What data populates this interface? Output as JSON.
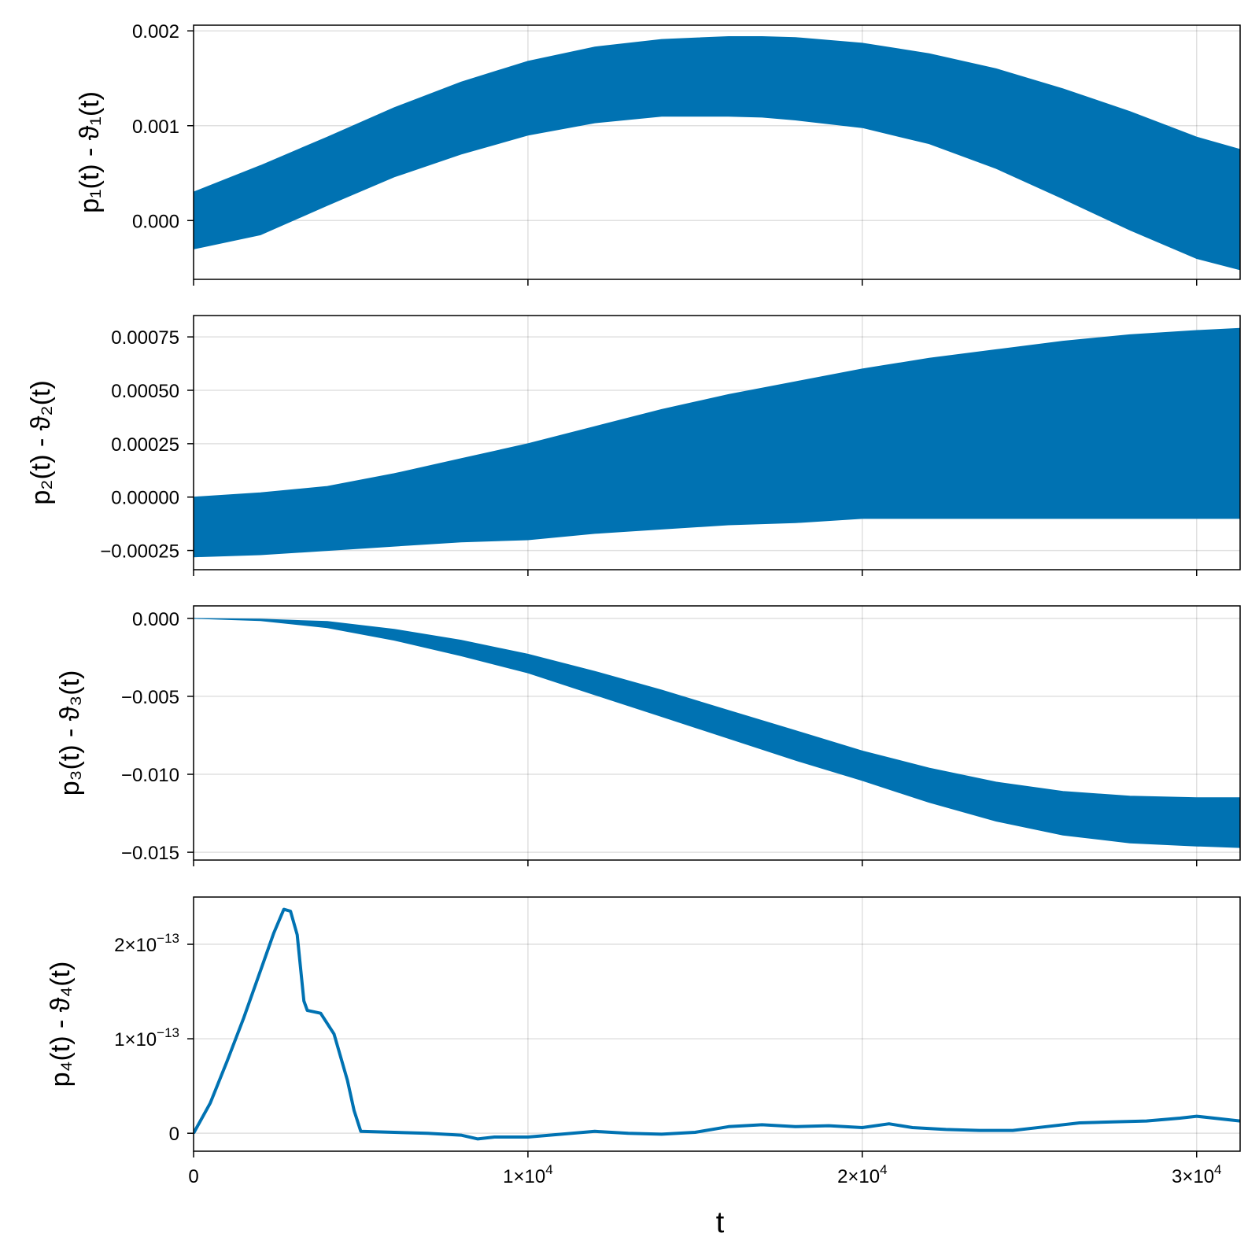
{
  "colors": {
    "series": "#0072b2",
    "background": "#ffffff",
    "axis": "#000000"
  },
  "chart_data": [
    {
      "type": "area",
      "ylabel": "p₁(t) - ϑ₁(t)",
      "xlim": [
        0,
        31300
      ],
      "ylim": [
        -0.00062,
        0.00206
      ],
      "grid": true,
      "yticks": [
        {
          "value": 0.0,
          "label": "0.000"
        },
        {
          "value": 0.001,
          "label": "0.001"
        },
        {
          "value": 0.002,
          "label": "0.002"
        }
      ],
      "xticks": [
        0,
        10000,
        20000,
        30000
      ],
      "x": [
        0,
        2000,
        4000,
        6000,
        8000,
        10000,
        12000,
        14000,
        16000,
        17000,
        18000,
        20000,
        22000,
        24000,
        26000,
        28000,
        30000,
        31300
      ],
      "series": [
        {
          "upper": [
            0.0003,
            0.00058,
            0.00088,
            0.00119,
            0.00146,
            0.00168,
            0.00183,
            0.00191,
            0.00194,
            0.00194,
            0.00193,
            0.00187,
            0.00176,
            0.0016,
            0.00139,
            0.00115,
            0.00088,
            0.00075
          ],
          "lower": [
            -0.0003,
            -0.00015,
            0.00016,
            0.00046,
            0.0007,
            0.0009,
            0.00103,
            0.0011,
            0.0011,
            0.00109,
            0.00106,
            0.00098,
            0.00081,
            0.00055,
            0.00023,
            -0.0001,
            -0.0004,
            -0.00052
          ]
        }
      ]
    },
    {
      "type": "area",
      "ylabel": "p₂(t) - ϑ₂(t)",
      "xlim": [
        0,
        31300
      ],
      "ylim": [
        -0.00034,
        0.00085
      ],
      "grid": true,
      "yticks": [
        {
          "value": -0.00025,
          "label": "−0.00025"
        },
        {
          "value": 0.0,
          "label": "0.00000"
        },
        {
          "value": 0.00025,
          "label": "0.00025"
        },
        {
          "value": 0.0005,
          "label": "0.00050"
        },
        {
          "value": 0.00075,
          "label": "0.00075"
        }
      ],
      "xticks": [
        0,
        10000,
        20000,
        30000
      ],
      "x": [
        0,
        2000,
        4000,
        6000,
        8000,
        10000,
        12000,
        14000,
        16000,
        18000,
        20000,
        22000,
        24000,
        26000,
        28000,
        30000,
        31300
      ],
      "series": [
        {
          "upper": [
            0.0,
            2e-05,
            5e-05,
            0.00011,
            0.00018,
            0.00025,
            0.00033,
            0.00041,
            0.00048,
            0.00054,
            0.0006,
            0.00065,
            0.00069,
            0.00073,
            0.00076,
            0.00078,
            0.00079
          ],
          "lower": [
            -0.00028,
            -0.00027,
            -0.00025,
            -0.00023,
            -0.00021,
            -0.0002,
            -0.00017,
            -0.00015,
            -0.00013,
            -0.00012,
            -0.0001,
            -0.0001,
            -0.0001,
            -0.0001,
            -0.0001,
            -0.0001,
            -0.0001
          ]
        }
      ]
    },
    {
      "type": "area",
      "ylabel": "p₃(t) - ϑ₃(t)",
      "xlim": [
        0,
        31300
      ],
      "ylim": [
        -0.0155,
        0.0008
      ],
      "grid": true,
      "yticks": [
        {
          "value": -0.015,
          "label": "−0.015"
        },
        {
          "value": -0.01,
          "label": "−0.010"
        },
        {
          "value": -0.005,
          "label": "−0.005"
        },
        {
          "value": 0.0,
          "label": "0.000"
        }
      ],
      "xticks": [
        0,
        10000,
        20000,
        30000
      ],
      "x": [
        0,
        2000,
        4000,
        6000,
        8000,
        10000,
        12000,
        14000,
        16000,
        18000,
        20000,
        22000,
        24000,
        26000,
        28000,
        30000,
        31300
      ],
      "series": [
        {
          "upper": [
            0.0,
            -5e-05,
            -0.0002,
            -0.0007,
            -0.0014,
            -0.0023,
            -0.0034,
            -0.0046,
            -0.0059,
            -0.0072,
            -0.0085,
            -0.0096,
            -0.0105,
            -0.0111,
            -0.0114,
            -0.0115,
            -0.0115
          ],
          "lower": [
            0.0,
            -0.00015,
            -0.0006,
            -0.0014,
            -0.0024,
            -0.0035,
            -0.0049,
            -0.0063,
            -0.0077,
            -0.0091,
            -0.0104,
            -0.0118,
            -0.013,
            -0.0139,
            -0.0144,
            -0.0146,
            -0.0147
          ]
        }
      ]
    },
    {
      "type": "line",
      "ylabel": "p₄(t) - ϑ₄(t)",
      "xlabel": "t",
      "xlim": [
        0,
        31300
      ],
      "ylim": [
        -1.9e-14,
        2.5e-13
      ],
      "grid": true,
      "yticks": [
        {
          "value": 0,
          "label": "0"
        },
        {
          "value": 1e-13,
          "label": "1×10",
          "exp": "−13"
        },
        {
          "value": 2e-13,
          "label": "2×10",
          "exp": "−13"
        }
      ],
      "xticks": [
        {
          "value": 0,
          "label": "0"
        },
        {
          "value": 10000,
          "label": "1×10",
          "exp": "4"
        },
        {
          "value": 20000,
          "label": "2×10",
          "exp": "4"
        },
        {
          "value": 30000,
          "label": "3×10",
          "exp": "4"
        }
      ],
      "x": [
        0,
        500,
        1000,
        1500,
        2000,
        2400,
        2700,
        2900,
        3100,
        3300,
        3400,
        3800,
        4200,
        4600,
        4800,
        5000,
        6000,
        7000,
        8000,
        8500,
        9000,
        10000,
        11000,
        12000,
        13000,
        14000,
        15000,
        16000,
        17000,
        18000,
        19000,
        20000,
        20800,
        21500,
        22500,
        23500,
        24500,
        25500,
        26500,
        27500,
        28500,
        29500,
        30000,
        31300
      ],
      "series": [
        {
          "values": [
            0,
            3.2e-14,
            7.6e-14,
            1.22e-13,
            1.72e-13,
            2.12e-13,
            2.37e-13,
            2.35e-13,
            2.1e-13,
            1.4e-13,
            1.3e-13,
            1.27e-13,
            1.05e-13,
            5.6e-14,
            2.4e-14,
            2e-15,
            1e-15,
            0,
            -2e-15,
            -6e-15,
            -4e-15,
            -4e-15,
            -1e-15,
            2e-15,
            0,
            -1e-15,
            1e-15,
            7e-15,
            9e-15,
            7e-15,
            8e-15,
            6e-15,
            1e-14,
            6e-15,
            4e-15,
            3e-15,
            3e-15,
            7e-15,
            1.1e-14,
            1.2e-14,
            1.3e-14,
            1.6e-14,
            1.8e-14,
            1.3e-14
          ]
        }
      ]
    }
  ]
}
